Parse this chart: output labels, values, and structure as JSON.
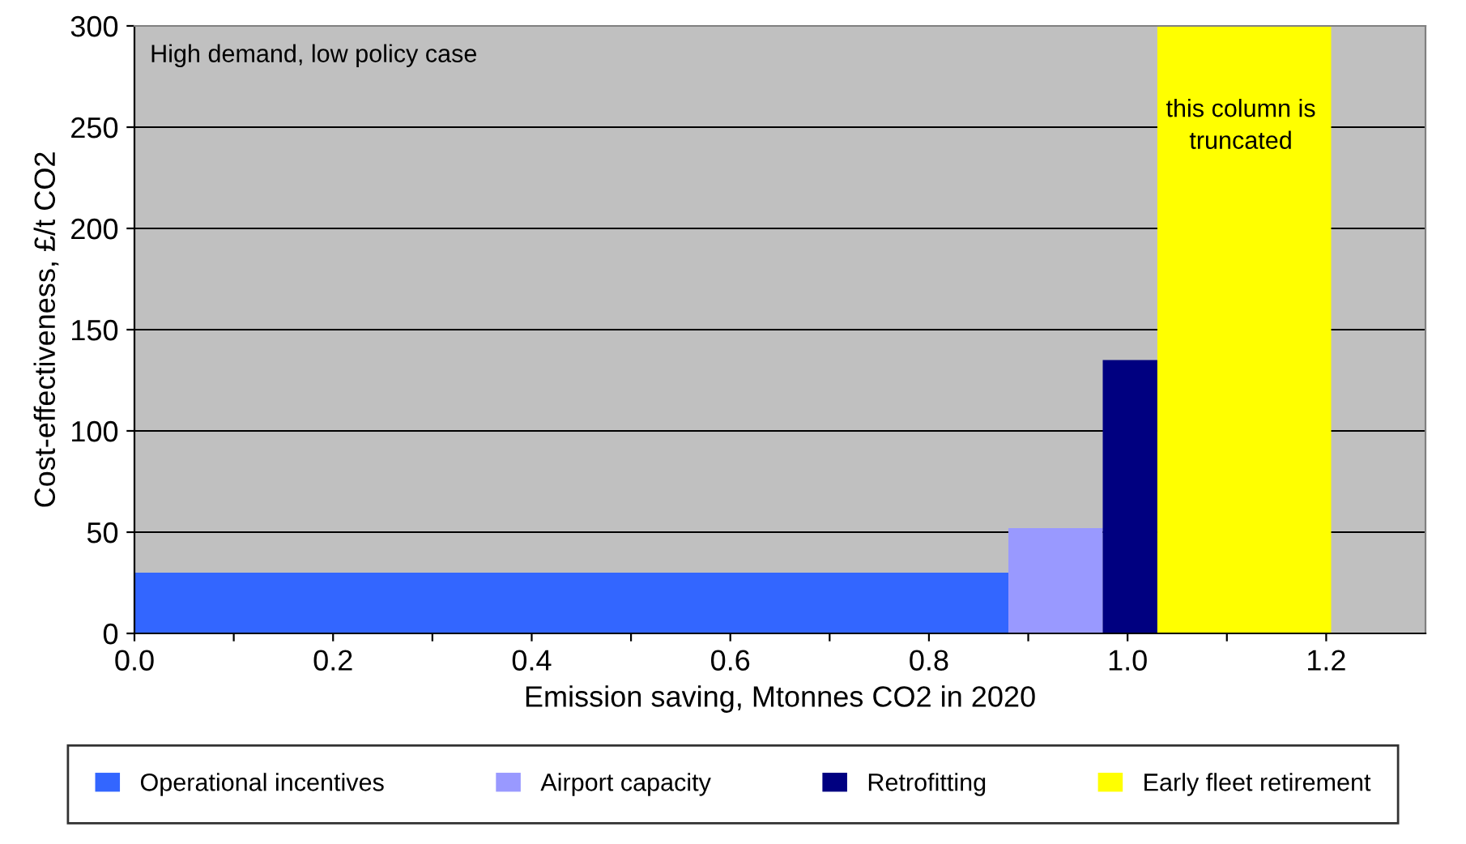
{
  "chart_data": {
    "type": "area",
    "xlabel": "Emission saving, Mtonnes CO2 in 2020",
    "ylabel": "Cost-effectiveness, £/t CO2",
    "series": [
      {
        "name": "Operational incentives",
        "color": "#3366ff",
        "x": [
          0,
          0.88
        ],
        "values": [
          30,
          30
        ]
      },
      {
        "name": "Airport capacity",
        "color": "#9999ff",
        "x": [
          0.88,
          0.975
        ],
        "values": [
          52,
          52
        ]
      },
      {
        "name": "Retrofitting",
        "color": "#000080",
        "x": [
          0.975,
          1.03
        ],
        "values": [
          135,
          135
        ]
      },
      {
        "name": "Early fleet retirement",
        "color": "#ffff00",
        "x": [
          1.03,
          1.205
        ],
        "values": [
          300,
          300
        ]
      }
    ],
    "annotations": [
      "High demand, low policy case",
      "this column is\ntruncated"
    ],
    "xlim": [
      0,
      1.3
    ],
    "xticks": [
      {
        "value": 0,
        "label": "0.0"
      },
      {
        "value": 0.1,
        "label": null
      },
      {
        "value": 0.2,
        "label": "0.2"
      },
      {
        "value": 0.3,
        "label": null
      },
      {
        "value": 0.4,
        "label": "0.4"
      },
      {
        "value": 0.5,
        "label": null
      },
      {
        "value": 0.6,
        "label": "0.6"
      },
      {
        "value": 0.7,
        "label": null
      },
      {
        "value": 0.8,
        "label": "0.8"
      },
      {
        "value": 0.9,
        "label": null
      },
      {
        "value": 1.0,
        "label": "1.0"
      },
      {
        "value": 1.1,
        "label": null
      },
      {
        "value": 1.2,
        "label": "1.2"
      }
    ],
    "ylim": [
      0,
      300
    ],
    "yticks": [
      0,
      50,
      100,
      150,
      200,
      250,
      300
    ],
    "grid": "y",
    "legend": "bottom"
  }
}
